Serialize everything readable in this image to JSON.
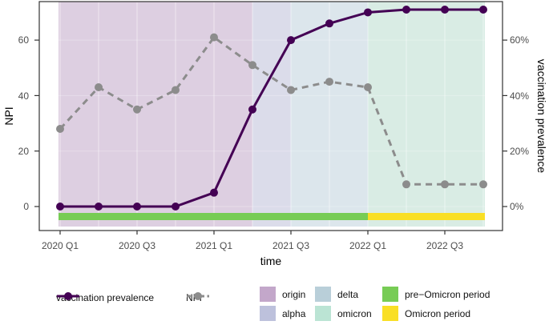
{
  "chart_data": {
    "type": "line",
    "title": "",
    "xlabel": "time",
    "ylabel_left": "NPI",
    "ylabel_right": "vaccination prevalence",
    "x_quarters": [
      "2020 Q1",
      "2020 Q2",
      "2020 Q3",
      "2020 Q4",
      "2021 Q1",
      "2021 Q2",
      "2021 Q3",
      "2021 Q4",
      "2022 Q1",
      "2022 Q2",
      "2022 Q3",
      "2022 Q4"
    ],
    "x_tick_labels": [
      "2020 Q1",
      "2020 Q3",
      "2021 Q1",
      "2021 Q3",
      "2022 Q1",
      "2022 Q3"
    ],
    "x_tick_quarter_idx": [
      0,
      2,
      4,
      6,
      8,
      10
    ],
    "y_left_ticks": [
      "0",
      "20",
      "40",
      "60"
    ],
    "y_left_tick_values": [
      0,
      20,
      40,
      60
    ],
    "y_right_ticks": [
      "0%",
      "20%",
      "40%",
      "60%"
    ],
    "grid": "subtle-white-on-shading",
    "legend_position": "bottom",
    "series": [
      {
        "name": "vaccination prevalence",
        "axis": "right",
        "color": "#440154",
        "line_style": "solid",
        "values": [
          0,
          0,
          0,
          0,
          5,
          35,
          60,
          66,
          70,
          71,
          71,
          71
        ]
      },
      {
        "name": "NPI",
        "axis": "left",
        "color": "#8c8c8c",
        "line_style": "dashed",
        "values": [
          28,
          43,
          35,
          42,
          61,
          51,
          42,
          45,
          43,
          8,
          8,
          8
        ]
      }
    ],
    "variant_regions": [
      {
        "label": "origin",
        "from_q": 0,
        "to_q": 5,
        "fill_chart": "#ddcfe1",
        "fill_legend": "#c3a7ca"
      },
      {
        "label": "alpha",
        "from_q": 5,
        "to_q": 6,
        "fill_chart": "#dbdcea",
        "fill_legend": "#bdc1dc"
      },
      {
        "label": "delta",
        "from_q": 6,
        "to_q": 8,
        "fill_chart": "#dce6ec",
        "fill_legend": "#b9cfd9"
      },
      {
        "label": "omicron",
        "from_q": 8,
        "to_q": 11,
        "fill_chart": "#d9ece4",
        "fill_legend": "#bbe4d4"
      }
    ],
    "period_bars": [
      {
        "label": "pre−Omicron period",
        "from_q": 0,
        "to_q": 8,
        "fill": "#77cc55"
      },
      {
        "label": "Omicron period",
        "from_q": 8,
        "to_q": 11,
        "fill": "#f9df25"
      }
    ]
  },
  "colors": {
    "panel_border": "#333333",
    "tick_label": "#4d4d4d",
    "axis_title": "#000000"
  }
}
